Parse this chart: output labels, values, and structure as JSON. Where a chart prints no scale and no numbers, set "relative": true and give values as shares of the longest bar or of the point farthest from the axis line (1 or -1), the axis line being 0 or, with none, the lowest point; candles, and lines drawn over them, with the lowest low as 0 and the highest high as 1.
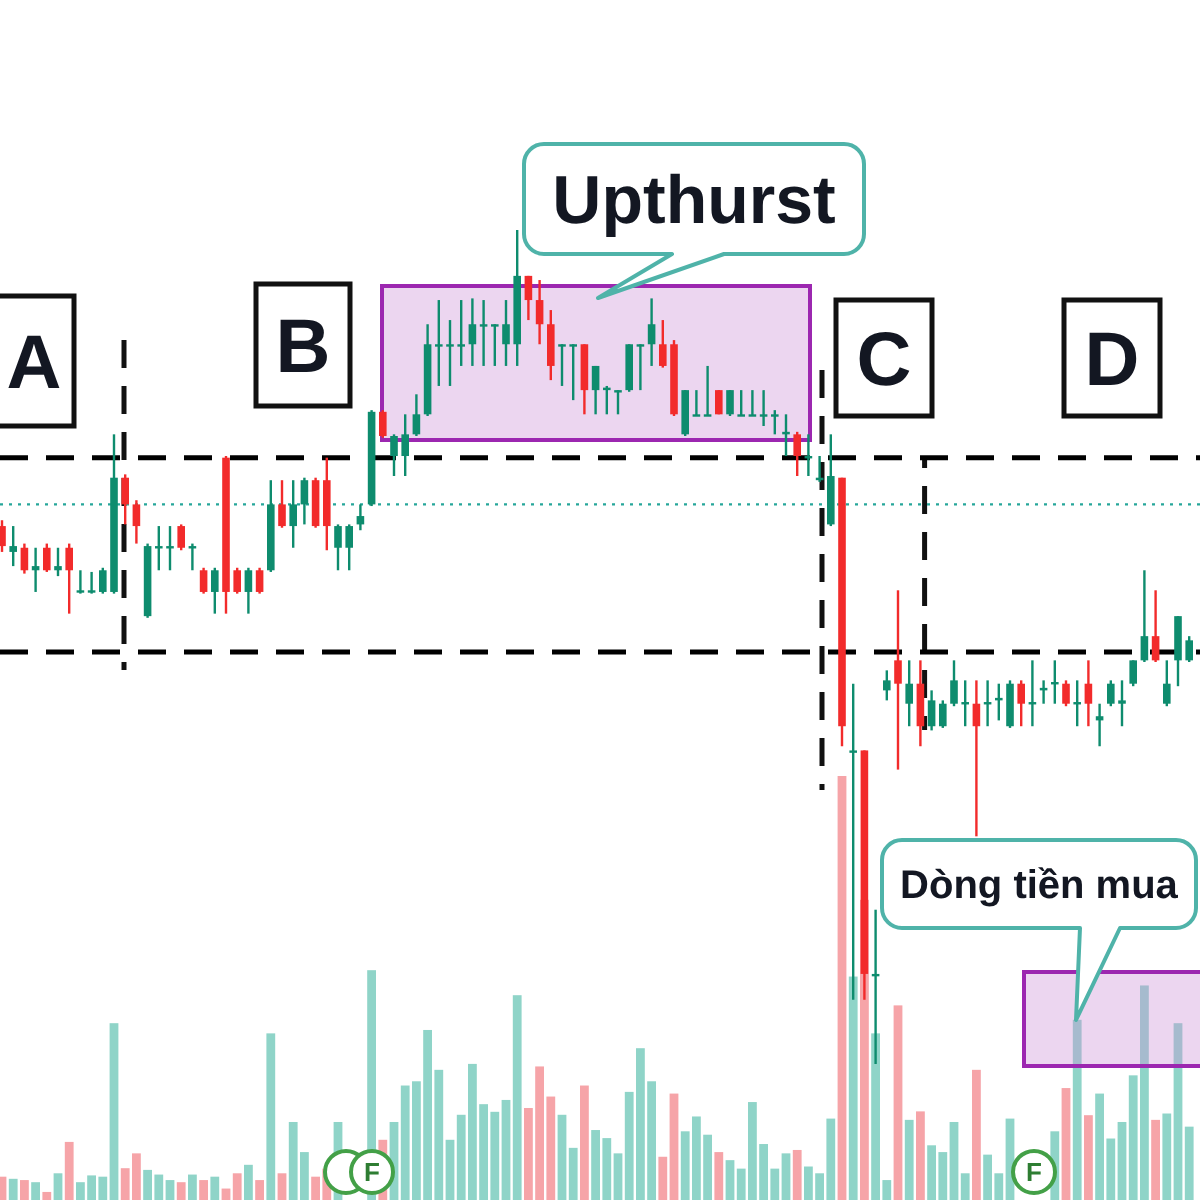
{
  "chart_data": [
    {
      "type": "candlestick",
      "relative": true,
      "categories": [
        null,
        null,
        null,
        null,
        null,
        null,
        null,
        null,
        null,
        null,
        null,
        null,
        null,
        null,
        null,
        null,
        null,
        null,
        null,
        null,
        null,
        null,
        null,
        null,
        null,
        null,
        null,
        null,
        null,
        null,
        null,
        null,
        null,
        null,
        null,
        null,
        null,
        null,
        null,
        null,
        null,
        null,
        null,
        null,
        null,
        null,
        null,
        null,
        null,
        null,
        null,
        null,
        null,
        null,
        null,
        null,
        null,
        null,
        null,
        null,
        null,
        null,
        null,
        null,
        null,
        null,
        null,
        null,
        null,
        null,
        null,
        null,
        null,
        null,
        null,
        null,
        null,
        null,
        null,
        null,
        null,
        null,
        null,
        null,
        null,
        null,
        null,
        null,
        null,
        null,
        null,
        null,
        null,
        null,
        null,
        null,
        null,
        null,
        null,
        null,
        null,
        null,
        null,
        null,
        null,
        null,
        null
      ],
      "ohlc": [
        [
          0.645,
          0.652,
          0.614,
          0.621
        ],
        [
          0.614,
          0.645,
          0.597,
          0.621
        ],
        [
          0.619,
          0.624,
          0.588,
          0.592
        ],
        [
          0.592,
          0.619,
          0.566,
          0.597
        ],
        [
          0.619,
          0.624,
          0.59,
          0.592
        ],
        [
          0.592,
          0.619,
          0.585,
          0.597
        ],
        [
          0.619,
          0.624,
          0.54,
          0.592
        ],
        [
          0.566,
          0.592,
          0.564,
          0.568
        ],
        [
          0.566,
          0.59,
          0.564,
          0.568
        ],
        [
          0.566,
          0.595,
          0.564,
          0.592
        ],
        [
          0.566,
          0.755,
          0.564,
          0.703
        ],
        [
          0.703,
          0.707,
          0.647,
          0.671
        ],
        [
          0.671,
          0.676,
          0.624,
          0.645
        ],
        [
          0.537,
          0.624,
          0.535,
          0.621
        ],
        [
          0.619,
          0.645,
          0.592,
          0.621
        ],
        [
          0.619,
          0.645,
          0.592,
          0.621
        ],
        [
          0.645,
          0.647,
          0.616,
          0.619
        ],
        [
          0.619,
          0.624,
          0.592,
          0.621
        ],
        [
          0.592,
          0.595,
          0.564,
          0.566
        ],
        [
          0.566,
          0.595,
          0.54,
          0.592
        ],
        [
          0.727,
          0.729,
          0.54,
          0.566
        ],
        [
          0.592,
          0.595,
          0.564,
          0.566
        ],
        [
          0.566,
          0.595,
          0.54,
          0.592
        ],
        [
          0.592,
          0.595,
          0.564,
          0.566
        ],
        [
          0.592,
          0.7,
          0.59,
          0.671
        ],
        [
          0.671,
          0.7,
          0.643,
          0.645
        ],
        [
          0.645,
          0.7,
          0.619,
          0.671
        ],
        [
          0.671,
          0.703,
          0.647,
          0.7
        ],
        [
          0.7,
          0.703,
          0.643,
          0.645
        ],
        [
          0.7,
          0.727,
          0.616,
          0.645
        ],
        [
          0.619,
          0.647,
          0.592,
          0.645
        ],
        [
          0.619,
          0.647,
          0.592,
          0.645
        ],
        [
          0.647,
          0.671,
          0.64,
          0.657
        ],
        [
          0.671,
          0.784,
          0.669,
          0.782
        ],
        [
          0.782,
          0.784,
          0.751,
          0.753
        ],
        [
          0.729,
          0.755,
          0.705,
          0.753
        ],
        [
          0.729,
          0.779,
          0.705,
          0.755
        ],
        [
          0.755,
          0.803,
          0.753,
          0.779
        ],
        [
          0.779,
          0.887,
          0.777,
          0.863
        ],
        [
          0.861,
          0.916,
          0.813,
          0.863
        ],
        [
          0.861,
          0.892,
          0.813,
          0.863
        ],
        [
          0.861,
          0.916,
          0.837,
          0.863
        ],
        [
          0.863,
          0.918,
          0.837,
          0.887
        ],
        [
          0.885,
          0.916,
          0.837,
          0.887
        ],
        [
          0.885,
          0.887,
          0.837,
          0.887
        ],
        [
          0.863,
          0.916,
          0.837,
          0.887
        ],
        [
          0.863,
          1,
          0.837,
          0.945
        ],
        [
          0.945,
          0.945,
          0.892,
          0.916
        ],
        [
          0.916,
          0.94,
          0.863,
          0.887
        ],
        [
          0.887,
          0.904,
          0.82,
          0.837
        ],
        [
          0.861,
          0.863,
          0.813,
          0.863
        ],
        [
          0.861,
          0.863,
          0.796,
          0.863
        ],
        [
          0.863,
          0.863,
          0.779,
          0.808
        ],
        [
          0.808,
          0.837,
          0.779,
          0.837
        ],
        [
          0.808,
          0.813,
          0.779,
          0.811
        ],
        [
          0.806,
          0.808,
          0.779,
          0.808
        ],
        [
          0.808,
          0.863,
          0.806,
          0.863
        ],
        [
          0.861,
          0.863,
          0.808,
          0.863
        ],
        [
          0.863,
          0.918,
          0.837,
          0.887
        ],
        [
          0.863,
          0.892,
          0.835,
          0.837
        ],
        [
          0.863,
          0.868,
          0.777,
          0.779
        ],
        [
          0.755,
          0.808,
          0.753,
          0.808
        ],
        [
          0.777,
          0.808,
          0.777,
          0.779
        ],
        [
          0.777,
          0.837,
          0.777,
          0.779
        ],
        [
          0.808,
          0.808,
          0.779,
          0.779
        ],
        [
          0.779,
          0.808,
          0.777,
          0.808
        ],
        [
          0.777,
          0.808,
          0.777,
          0.779
        ],
        [
          0.777,
          0.808,
          0.777,
          0.779
        ],
        [
          0.777,
          0.808,
          0.765,
          0.779
        ],
        [
          0.777,
          0.784,
          0.755,
          0.779
        ],
        [
          0.755,
          0.779,
          0.729,
          0.758
        ],
        [
          0.755,
          0.758,
          0.705,
          0.729
        ],
        [
          0.727,
          0.755,
          0.705,
          0.729
        ],
        [
          0.7,
          0.729,
          0.698,
          0.703
        ],
        [
          0.647,
          0.755,
          0.645,
          0.705
        ],
        [
          0.703,
          0.703,
          0.381,
          0.405
        ],
        [
          0.374,
          0.456,
          0.077,
          0.376
        ],
        [
          0.376,
          0.376,
          0.077,
          0.108
        ],
        [
          0.106,
          0.185,
          0,
          0.108
        ],
        [
          0.448,
          0.472,
          0.436,
          0.46
        ],
        [
          0.484,
          0.568,
          0.353,
          0.456
        ],
        [
          0.432,
          0.484,
          0.405,
          0.456
        ],
        [
          0.456,
          0.484,
          0.381,
          0.405
        ],
        [
          0.405,
          0.448,
          0.4,
          0.436
        ],
        [
          0.405,
          0.436,
          0.403,
          0.432
        ],
        [
          0.432,
          0.484,
          0.429,
          0.46
        ],
        [
          0.432,
          0.46,
          0.405,
          0.434
        ],
        [
          0.432,
          0.46,
          0.273,
          0.405
        ],
        [
          0.432,
          0.46,
          0.405,
          0.434
        ],
        [
          0.436,
          0.456,
          0.412,
          0.439
        ],
        [
          0.405,
          0.46,
          0.403,
          0.456
        ],
        [
          0.456,
          0.46,
          0.405,
          0.432
        ],
        [
          0.432,
          0.484,
          0.405,
          0.434
        ],
        [
          0.448,
          0.46,
          0.432,
          0.451
        ],
        [
          0.456,
          0.484,
          0.432,
          0.458
        ],
        [
          0.456,
          0.46,
          0.429,
          0.432
        ],
        [
          0.432,
          0.46,
          0.405,
          0.434
        ],
        [
          0.456,
          0.484,
          0.405,
          0.432
        ],
        [
          0.412,
          0.432,
          0.381,
          0.417
        ],
        [
          0.432,
          0.46,
          0.429,
          0.456
        ],
        [
          0.432,
          0.46,
          0.405,
          0.436
        ],
        [
          0.456,
          0.484,
          0.453,
          0.484
        ],
        [
          0.484,
          0.592,
          0.482,
          0.513
        ],
        [
          0.513,
          0.568,
          0.482,
          0.484
        ],
        [
          0.432,
          0.484,
          0.429,
          0.456
        ],
        [
          0.484,
          0.537,
          0.453,
          0.537
        ],
        [
          0.484,
          0.513,
          0.482,
          0.508
        ]
      ],
      "colors": [
        "#f22b2b",
        "#0e8c6e",
        "#f22b2b",
        "#0e8c6e",
        "#f22b2b",
        "#0e8c6e",
        "#f22b2b",
        "#0e8c6e",
        "#0e8c6e",
        "#0e8c6e",
        "#0e8c6e",
        "#f22b2b",
        "#f22b2b",
        "#0e8c6e",
        "#0e8c6e",
        "#0e8c6e",
        "#f22b2b",
        "#0e8c6e",
        "#f22b2b",
        "#0e8c6e",
        "#f22b2b",
        "#f22b2b",
        "#0e8c6e",
        "#f22b2b",
        "#0e8c6e",
        "#f22b2b",
        "#0e8c6e",
        "#0e8c6e",
        "#f22b2b",
        "#f22b2b",
        "#0e8c6e",
        "#0e8c6e",
        "#0e8c6e",
        "#0e8c6e",
        "#f22b2b",
        "#0e8c6e",
        "#0e8c6e",
        "#0e8c6e",
        "#0e8c6e",
        "#0e8c6e",
        "#0e8c6e",
        "#0e8c6e",
        "#0e8c6e",
        "#0e8c6e",
        "#0e8c6e",
        "#0e8c6e",
        "#0e8c6e",
        "#f22b2b",
        "#f22b2b",
        "#f22b2b",
        "#0e8c6e",
        "#0e8c6e",
        "#f22b2b",
        "#0e8c6e",
        "#0e8c6e",
        "#0e8c6e",
        "#0e8c6e",
        "#0e8c6e",
        "#0e8c6e",
        "#f22b2b",
        "#f22b2b",
        "#0e8c6e",
        "#0e8c6e",
        "#0e8c6e",
        "#f22b2b",
        "#0e8c6e",
        "#0e8c6e",
        "#0e8c6e",
        "#0e8c6e",
        "#0e8c6e",
        "#0e8c6e",
        "#f22b2b",
        "#0e8c6e",
        "#0e8c6e",
        "#0e8c6e",
        "#f22b2b",
        "#0e8c6e",
        "#f22b2b",
        "#0e8c6e",
        "#0e8c6e",
        "#f22b2b",
        "#0e8c6e",
        "#f22b2b",
        "#0e8c6e",
        "#0e8c6e",
        "#0e8c6e",
        "#0e8c6e",
        "#f22b2b",
        "#0e8c6e",
        "#0e8c6e",
        "#0e8c6e",
        "#f22b2b",
        "#0e8c6e",
        "#0e8c6e",
        "#0e8c6e",
        "#f22b2b",
        "#0e8c6e",
        "#f22b2b",
        "#0e8c6e",
        "#0e8c6e",
        "#0e8c6e",
        "#0e8c6e",
        "#0e8c6e",
        "#f22b2b",
        "#0e8c6e",
        "#0e8c6e",
        "#0e8c6e"
      ],
      "ref_lines": [
        {
          "axis": "y",
          "value": 0.727,
          "color": "#000000",
          "line_style": "dashed"
        },
        {
          "axis": "y",
          "value": 0.494,
          "color": "#000000",
          "line_style": "dashed"
        },
        {
          "axis": "y",
          "value": 0.671,
          "color": "#26a69a",
          "line_style": "dotted"
        }
      ],
      "annotations": [
        "A",
        "B",
        "C",
        "D",
        "Upthurst"
      ]
    },
    {
      "type": "bar",
      "relative": true,
      "categories": [
        null,
        null,
        null,
        null,
        null,
        null,
        null,
        null,
        null,
        null,
        null,
        null,
        null,
        null,
        null,
        null,
        null,
        null,
        null,
        null,
        null,
        null,
        null,
        null,
        null,
        null,
        null,
        null,
        null,
        null,
        null,
        null,
        null,
        null,
        null,
        null,
        null,
        null,
        null,
        null,
        null,
        null,
        null,
        null,
        null,
        null,
        null,
        null,
        null,
        null,
        null,
        null,
        null,
        null,
        null,
        null,
        null,
        null,
        null,
        null,
        null,
        null,
        null,
        null,
        null,
        null,
        null,
        null,
        null,
        null,
        null,
        null,
        null,
        null,
        null,
        null,
        null,
        null,
        null,
        null,
        null,
        null,
        null,
        null,
        null,
        null,
        null,
        null,
        null,
        null,
        null,
        null,
        null,
        null,
        null,
        null,
        null,
        null,
        null,
        null,
        null,
        null,
        null,
        null,
        null,
        null,
        null
      ],
      "values": [
        0.055,
        0.05,
        0.047,
        0.042,
        0.019,
        0.063,
        0.137,
        0.042,
        0.058,
        0.055,
        0.417,
        0.075,
        0.11,
        0.071,
        0.06,
        0.047,
        0.042,
        0.06,
        0.047,
        0.055,
        0.027,
        0.063,
        0.083,
        0.047,
        0.393,
        0.063,
        0.184,
        0.113,
        0.055,
        0.074,
        0.184,
        null,
        null,
        0.542,
        0.142,
        0.184,
        0.27,
        0.28,
        0.401,
        0.307,
        0.142,
        0.201,
        0.321,
        0.226,
        0.208,
        0.236,
        0.483,
        0.217,
        0.315,
        0.244,
        0.201,
        0.123,
        0.27,
        0.165,
        0.146,
        0.11,
        0.255,
        0.358,
        0.28,
        0.102,
        0.251,
        0.162,
        0.197,
        0.154,
        0.113,
        0.094,
        0.074,
        0.231,
        0.132,
        0.074,
        0.11,
        0.118,
        0.079,
        0.063,
        0.192,
        1,
        0.527,
        0.708,
        0.393,
        0.047,
        0.459,
        0.189,
        0.209,
        0.129,
        0.113,
        0.184,
        0.063,
        0.307,
        0.107,
        0.063,
        0.192,
        null,
        null,
        null,
        0.162,
        0.264,
        0.425,
        0.2,
        0.251,
        0.145,
        0.184,
        0.294,
        0.506,
        0.189,
        0.204,
        0.417,
        0.173
      ],
      "colors": [
        "#f6a4a8",
        "#8fd4c8",
        "#f6a4a8",
        "#8fd4c8",
        "#f6a4a8",
        "#8fd4c8",
        "#f6a4a8",
        "#8fd4c8",
        "#8fd4c8",
        "#8fd4c8",
        "#8fd4c8",
        "#f6a4a8",
        "#f6a4a8",
        "#8fd4c8",
        "#8fd4c8",
        "#8fd4c8",
        "#f6a4a8",
        "#8fd4c8",
        "#f6a4a8",
        "#8fd4c8",
        "#f6a4a8",
        "#f6a4a8",
        "#8fd4c8",
        "#f6a4a8",
        "#8fd4c8",
        "#f6a4a8",
        "#8fd4c8",
        "#8fd4c8",
        "#f6a4a8",
        "#f6a4a8",
        "#8fd4c8",
        null,
        null,
        "#8fd4c8",
        "#f6a4a8",
        "#8fd4c8",
        "#8fd4c8",
        "#8fd4c8",
        "#8fd4c8",
        "#8fd4c8",
        "#8fd4c8",
        "#8fd4c8",
        "#8fd4c8",
        "#8fd4c8",
        "#8fd4c8",
        "#8fd4c8",
        "#8fd4c8",
        "#f6a4a8",
        "#f6a4a8",
        "#f6a4a8",
        "#8fd4c8",
        "#8fd4c8",
        "#f6a4a8",
        "#8fd4c8",
        "#8fd4c8",
        "#8fd4c8",
        "#8fd4c8",
        "#8fd4c8",
        "#8fd4c8",
        "#f6a4a8",
        "#f6a4a8",
        "#8fd4c8",
        "#8fd4c8",
        "#8fd4c8",
        "#f6a4a8",
        "#8fd4c8",
        "#8fd4c8",
        "#8fd4c8",
        "#8fd4c8",
        "#8fd4c8",
        "#8fd4c8",
        "#f6a4a8",
        "#8fd4c8",
        "#8fd4c8",
        "#8fd4c8",
        "#f6a4a8",
        "#8fd4c8",
        "#f6a4a8",
        "#8fd4c8",
        "#8fd4c8",
        "#f6a4a8",
        "#8fd4c8",
        "#f6a4a8",
        "#8fd4c8",
        "#8fd4c8",
        "#8fd4c8",
        "#8fd4c8",
        "#f6a4a8",
        "#8fd4c8",
        "#8fd4c8",
        "#8fd4c8",
        null,
        null,
        null,
        "#8fd4c8",
        "#f6a4a8",
        "#8fd4c8",
        "#f6a4a8",
        "#8fd4c8",
        "#8fd4c8",
        "#8fd4c8",
        "#8fd4c8",
        "#8fd4c8",
        "#f6a4a8",
        "#8fd4c8",
        "#8fd4c8",
        "#8fd4c8"
      ],
      "annotations": [
        "Dòng tiền mua",
        "F",
        "F"
      ]
    }
  ]
}
